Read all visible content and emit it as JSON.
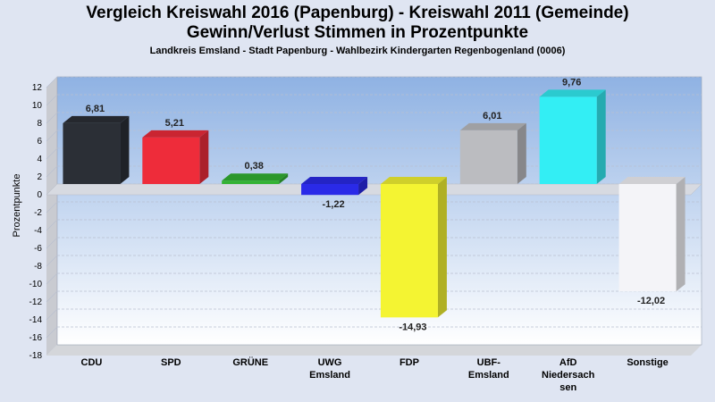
{
  "chart_data": {
    "type": "bar",
    "title": "Vergleich Kreiswahl 2016 (Papenburg) - Kreiswahl 2011 (Gemeinde)",
    "title2": "Gewinn/Verlust Stimmen in Prozentpunkte",
    "subtitle": "Landkreis Emsland - Stadt Papenburg - Wahlbezirk Kindergarten Regenbogenland (0006)",
    "ylabel": "Prozentpunkte",
    "ylim": [
      -18,
      12
    ],
    "yticks": [
      12,
      10,
      8,
      6,
      4,
      2,
      0,
      -2,
      -4,
      -6,
      -8,
      -10,
      -12,
      -14,
      -16,
      -18
    ],
    "categories": [
      "CDU",
      "SPD",
      "GRÜNE",
      "UWG Emsland",
      "FDP",
      "UBF-Emsland",
      "AfD Niedersachsen",
      "Sonstige"
    ],
    "category_lines": [
      [
        "CDU"
      ],
      [
        "SPD"
      ],
      [
        "GRÜNE"
      ],
      [
        "UWG",
        "Emsland"
      ],
      [
        "FDP"
      ],
      [
        "UBF-",
        "Emsland"
      ],
      [
        "AfD",
        "Niedersach",
        "sen"
      ],
      [
        "Sonstige"
      ]
    ],
    "values": [
      6.81,
      5.21,
      0.38,
      -1.22,
      -14.93,
      6.01,
      9.76,
      -12.02
    ],
    "value_labels": [
      "6,81",
      "5,21",
      "0,38",
      "-1,22",
      "-14,93",
      "6,01",
      "9,76",
      "-12,02"
    ],
    "colors": [
      "#2b2f36",
      "#ee2c3a",
      "#33b233",
      "#2a2ae8",
      "#f4f432",
      "#bbbcc0",
      "#33eef4",
      "#f4f4f8"
    ],
    "grid": true
  }
}
